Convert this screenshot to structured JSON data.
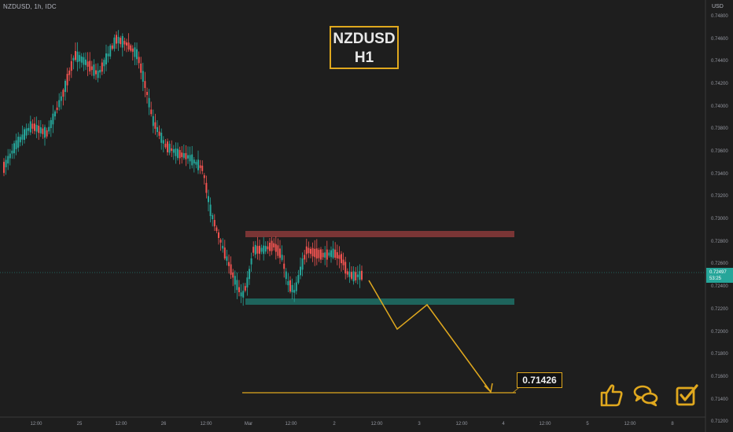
{
  "header": {
    "symbol_info": "NZDUSD, 1h, IDC"
  },
  "axis": {
    "currency": "USD",
    "y_ticks": [
      "0.74800",
      "0.74600",
      "0.74400",
      "0.74200",
      "0.74000",
      "0.73800",
      "0.73600",
      "0.73400",
      "0.73200",
      "0.73000",
      "0.72800",
      "0.72600",
      "0.72400",
      "0.72200",
      "0.72000",
      "0.71800",
      "0.71600",
      "0.71400",
      "0.71200"
    ],
    "x_ticks": [
      "12:00",
      "25",
      "12:00",
      "26",
      "12:00",
      "Mar",
      "12:00",
      "2",
      "12:00",
      "3",
      "12:00",
      "4",
      "12:00",
      "5",
      "12:00",
      "8"
    ]
  },
  "title_badge": {
    "line1": "NZDUSD",
    "line2": "H1"
  },
  "current_price": {
    "value": "0.72497",
    "countdown": "53:25"
  },
  "target_label": "0.71426",
  "colors": {
    "up": "#26a69a",
    "down": "#ef5350",
    "accent": "#e0a81e",
    "resistance": "#8b3a3a",
    "support": "#1e6b63"
  },
  "icons": [
    "thumbs-up-icon",
    "comments-icon",
    "checkbox-icon"
  ]
}
